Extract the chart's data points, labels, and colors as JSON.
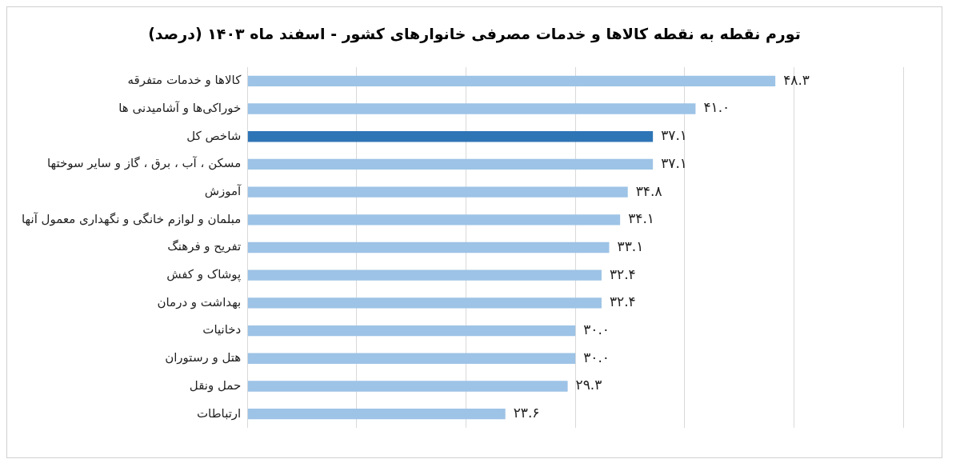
{
  "chart_data": {
    "type": "bar",
    "orientation": "horizontal",
    "title": "تورم نقطه به نقطه کالاها و خدمات مصرفی خانوارهای کشور - اسفند ماه ۱۴۰۳ (درصد)",
    "categories": [
      "کالاها و خدمات متفرقه",
      "خوراکی‌ها و آشامیدنی ها",
      "شاخص کل",
      "مسکن ، آب ، برق ، گاز و سایر سوختها",
      "آموزش",
      "مبلمان و لوازم خانگی و نگهداری معمول آنها",
      "تفریح و فرهنگ",
      "پوشاک و کفش",
      "بهداشت و درمان",
      "دخانیات",
      "هتل و رستوران",
      "حمل ونقل",
      "ارتباطات"
    ],
    "values": [
      48.3,
      41.0,
      37.1,
      37.1,
      34.8,
      34.1,
      33.1,
      32.4,
      32.4,
      30.0,
      30.0,
      29.3,
      23.6
    ],
    "value_labels": [
      "۴۸.۳",
      "۴۱.۰",
      "۳۷.۱",
      "۳۷.۱",
      "۳۴.۸",
      "۳۴.۱",
      "۳۳.۱",
      "۳۲.۴",
      "۳۲.۴",
      "۳۰.۰",
      "۳۰.۰",
      "۲۹.۳",
      "۲۳.۶"
    ],
    "colors": [
      "#9dc3e6",
      "#9dc3e6",
      "#2e75b6",
      "#9dc3e6",
      "#9dc3e6",
      "#9dc3e6",
      "#9dc3e6",
      "#9dc3e6",
      "#9dc3e6",
      "#9dc3e6",
      "#9dc3e6",
      "#9dc3e6",
      "#9dc3e6"
    ],
    "xlim": [
      0,
      60
    ],
    "xticks": [
      {
        "value": 0,
        "label": null
      },
      {
        "value": 10,
        "label": null
      },
      {
        "value": 20,
        "label": null
      },
      {
        "value": 30,
        "label": null
      },
      {
        "value": 40,
        "label": null
      },
      {
        "value": 50,
        "label": null
      },
      {
        "value": 60,
        "label": null
      }
    ],
    "grid": "x",
    "tick_labels": "y",
    "legend": false
  }
}
